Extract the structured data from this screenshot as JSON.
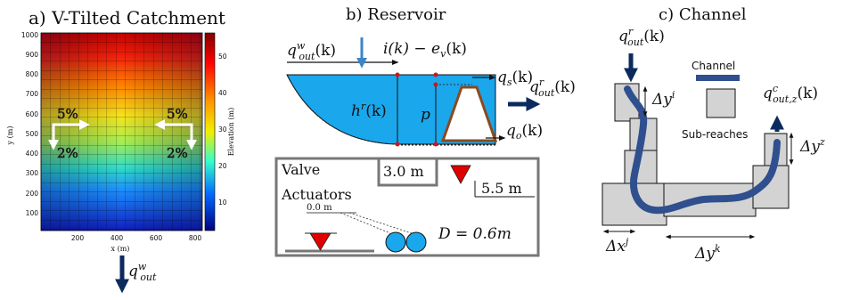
{
  "panels": {
    "a": {
      "title": "a) V-Tilted Catchment",
      "xlabel": "x (m)",
      "ylabel": "y (m)",
      "x_ticks": [
        "200",
        "400",
        "600",
        "800"
      ],
      "y_ticks": [
        "1000",
        "900",
        "800",
        "700",
        "600",
        "500",
        "400",
        "300",
        "200",
        "100"
      ],
      "colorbar_label": "Elevation (m)",
      "colorbar_ticks": [
        "50",
        "40",
        "30",
        "20",
        "10"
      ],
      "slope_left_x": "5%",
      "slope_left_y": "2%",
      "slope_right_x": "5%",
      "slope_right_y": "2%",
      "outflow_base": "q",
      "outflow_sup": "w",
      "outflow_sub": "out"
    },
    "b": {
      "title": "b) Reservoir",
      "inflow_base": "q",
      "inflow_sup": "w",
      "inflow_sub": "out",
      "inflow_arg": "(k)",
      "rain_label": "i(k) − e",
      "rain_sub": "v",
      "rain_arg": "(k)",
      "spill_label": "q",
      "spill_sub": "s",
      "spill_arg": "(k)",
      "orifice_label": "q",
      "orifice_sub": "o",
      "orifice_arg": "(k)",
      "depth_label": "h",
      "depth_sup": "r",
      "depth_arg": "(k)",
      "p_label": "p",
      "out_base": "q",
      "out_sup": "r",
      "out_sub": "out",
      "out_arg": "(k)",
      "valve_title_1": "Valve",
      "valve_title_2": "Actuators",
      "dim_top": "3.0 m",
      "dim_right": "5.5 m",
      "dim_zero": "0.0 m",
      "diameter": "D = 0.6m"
    },
    "c": {
      "title": "c) Channel",
      "in_base": "q",
      "in_sup": "r",
      "in_sub": "out",
      "in_arg": "(k)",
      "legend_channel": "Channel",
      "legend_subreaches": "Sub-reaches",
      "out_base": "q",
      "out_sup": "c",
      "out_sub": "out,z",
      "out_arg": "(k)",
      "dy_i": "Δy",
      "dy_i_sup": "i",
      "dy_z": "Δy",
      "dy_z_sup": "z",
      "dx_j": "Δx",
      "dx_j_sup": "j",
      "dy_k": "Δy",
      "dy_k_sup": "k"
    }
  },
  "colors": {
    "navy_arrow": "#0b2a5e",
    "rain_arrow": "#3a86c8",
    "water": "#1aa7ec",
    "channel": "#2f4f8f",
    "subreach_fill": "#d3d3d3",
    "box_gray": "#777777",
    "trap": "#8b4a1e",
    "valve_red": "#e00000"
  }
}
